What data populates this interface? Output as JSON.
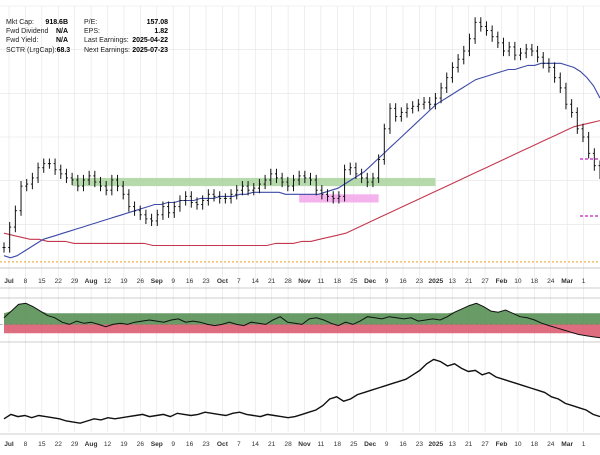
{
  "stats": {
    "left": [
      {
        "label": "Mkt Cap:",
        "value": "918.6B"
      },
      {
        "label": "Fwd Dividend",
        "value": "N/A"
      },
      {
        "label": "Fwd Yield:",
        "value": "N/A"
      },
      {
        "label": "SCTR (LrgCap):",
        "value": "68.3"
      }
    ],
    "right": [
      {
        "label": "P/E:",
        "value": "157.08"
      },
      {
        "label": "EPS:",
        "value": "1.82"
      },
      {
        "label": "Last Earnings:",
        "value": "2025-04-22"
      },
      {
        "label": "Next Earnings:",
        "value": "2025-07-23"
      }
    ]
  },
  "colors": {
    "price_bars": "#111111",
    "sma_short": "#3d4aa6",
    "sma_long": "#c4384f",
    "support_line": "#e8a317",
    "zone_green": "#a9d39e",
    "zone_pink": "#f2a6ea",
    "marker_magenta": "#c020c0",
    "indicator_fill": "#4e8a4a",
    "indicator_fill_neg": "#d9536a",
    "grid": "#e4e4e4",
    "axis": "#333333"
  },
  "chart_data": [
    {
      "type": "line",
      "panel": "price",
      "x_tick_labels": [
        "Jul",
        "8",
        "15",
        "22",
        "29",
        "Aug",
        "12",
        "19",
        "26",
        "Sep",
        "9",
        "16",
        "23",
        "Oct",
        "7",
        "14",
        "21",
        "28",
        "Nov",
        "11",
        "18",
        "25",
        "Dec",
        "9",
        "16",
        "23",
        "2025",
        "13",
        "21",
        "27",
        "Feb",
        "10",
        "18",
        "24",
        "Mar",
        "1"
      ],
      "bold_ticks": [
        "Jul",
        "Aug",
        "Sep",
        "Oct",
        "Nov",
        "Dec",
        "2025",
        "Feb",
        "Mar"
      ],
      "price_close": [
        232,
        242,
        250,
        262,
        263,
        266,
        271,
        273,
        273,
        270,
        268,
        266,
        265,
        262,
        265,
        267,
        264,
        262,
        260,
        265,
        262,
        258,
        252,
        250,
        248,
        246,
        245,
        248,
        252,
        249,
        252,
        255,
        257,
        254,
        253,
        255,
        258,
        257,
        256,
        256,
        258,
        260,
        262,
        260,
        261,
        263,
        265,
        268,
        266,
        264,
        262,
        265,
        267,
        266,
        265,
        260,
        258,
        257,
        256,
        257,
        270,
        271,
        268,
        266,
        264,
        266,
        275,
        290,
        300,
        296,
        298,
        300,
        301,
        302,
        303,
        302,
        305,
        310,
        315,
        320,
        324,
        328,
        334,
        342,
        340,
        338,
        335,
        332,
        328,
        330,
        326,
        327,
        329,
        328,
        325,
        322,
        320,
        315,
        310,
        302,
        298,
        290,
        286,
        278,
        272,
        268
      ],
      "sma_short": [
        228,
        227,
        228,
        230,
        232,
        234,
        236,
        237,
        238,
        239,
        240,
        241,
        242,
        243,
        244,
        245,
        246,
        247,
        248,
        249,
        250,
        251,
        252,
        253,
        253,
        254,
        254,
        255,
        255,
        255,
        256,
        256,
        256,
        257,
        257,
        257,
        258,
        258,
        259,
        259,
        259,
        259,
        259,
        258,
        258,
        258,
        258,
        258,
        258,
        259,
        260,
        261,
        263,
        265,
        267,
        269,
        272,
        275,
        278,
        281,
        284,
        287,
        290,
        293,
        296,
        299,
        302,
        304,
        306,
        308,
        310,
        312,
        314,
        315,
        316,
        317,
        318,
        319,
        319,
        320,
        321,
        321,
        322,
        322,
        322,
        322,
        321,
        320,
        318,
        315,
        311,
        305
      ],
      "sma_long": [
        239,
        238,
        237,
        236,
        236,
        235,
        235,
        235,
        234,
        234,
        234,
        234,
        234,
        234,
        234,
        234,
        234,
        233,
        233,
        233,
        233,
        233,
        233,
        233,
        233,
        233,
        233,
        233,
        233,
        233,
        233,
        234,
        234,
        234,
        235,
        235,
        236,
        237,
        238,
        239,
        241,
        243,
        245,
        247,
        249,
        251,
        253,
        255,
        257,
        259,
        261,
        263,
        265,
        267,
        269,
        271,
        273,
        275,
        277,
        279,
        281,
        283,
        285,
        287,
        289,
        291,
        292,
        293,
        294
      ],
      "support_level": 225,
      "zones": [
        {
          "color": "green",
          "from_index": 12,
          "to_index": 76,
          "low": 262,
          "high": 266
        },
        {
          "color": "pink",
          "from_index": 52,
          "to_index": 66,
          "low": 254,
          "high": 258
        }
      ],
      "ylim": [
        222,
        350
      ]
    },
    {
      "type": "area",
      "panel": "oscillator",
      "values": [
        0.3,
        0.6,
        0.9,
        0.95,
        0.8,
        0.6,
        0.4,
        0.3,
        0.1,
        0.0,
        0.15,
        0.05,
        0.1,
        0.0,
        -0.1,
        0.0,
        0.05,
        0.0,
        0.1,
        0.15,
        0.2,
        0.15,
        0.1,
        0.2,
        0.25,
        0.1,
        0.15,
        0.1,
        0.0,
        -0.05,
        0.0,
        0.1,
        0.0,
        -0.05,
        0.1,
        0.05,
        0.0,
        0.2,
        0.35,
        0.1,
        0.05,
        0.0,
        0.25,
        0.3,
        0.2,
        0.05,
        -0.05,
        0.1,
        0.0,
        0.15,
        0.35,
        0.3,
        0.25,
        0.35,
        0.3,
        0.25,
        0.3,
        0.15,
        0.2,
        0.25,
        0.2,
        0.35,
        0.55,
        0.7,
        0.85,
        0.95,
        0.8,
        0.6,
        0.55,
        0.65,
        0.5,
        0.35,
        0.3,
        0.2,
        0.05,
        -0.05,
        -0.15,
        -0.25,
        -0.35,
        -0.45,
        -0.5,
        -0.55,
        -0.6
      ],
      "baseline": 0,
      "ylim": [
        -0.7,
        1.1
      ]
    },
    {
      "type": "line",
      "panel": "lower",
      "values": [
        12,
        16,
        14,
        15,
        13,
        15,
        14,
        13,
        12,
        10,
        9,
        8,
        10,
        12,
        11,
        13,
        12,
        13,
        14,
        15,
        16,
        14,
        15,
        16,
        14,
        17,
        16,
        15,
        16,
        18,
        17,
        16,
        15,
        17,
        18,
        16,
        15,
        14,
        16,
        15,
        14,
        13,
        14,
        16,
        18,
        20,
        24,
        30,
        32,
        28,
        30,
        34,
        36,
        38,
        40,
        42,
        44,
        46,
        48,
        52,
        56,
        62,
        66,
        64,
        60,
        62,
        58,
        55,
        56,
        52,
        54,
        50,
        48,
        46,
        44,
        42,
        40,
        38,
        36,
        32,
        30,
        26,
        24,
        22,
        20,
        16,
        14
      ],
      "ylim": [
        0,
        80
      ]
    }
  ]
}
